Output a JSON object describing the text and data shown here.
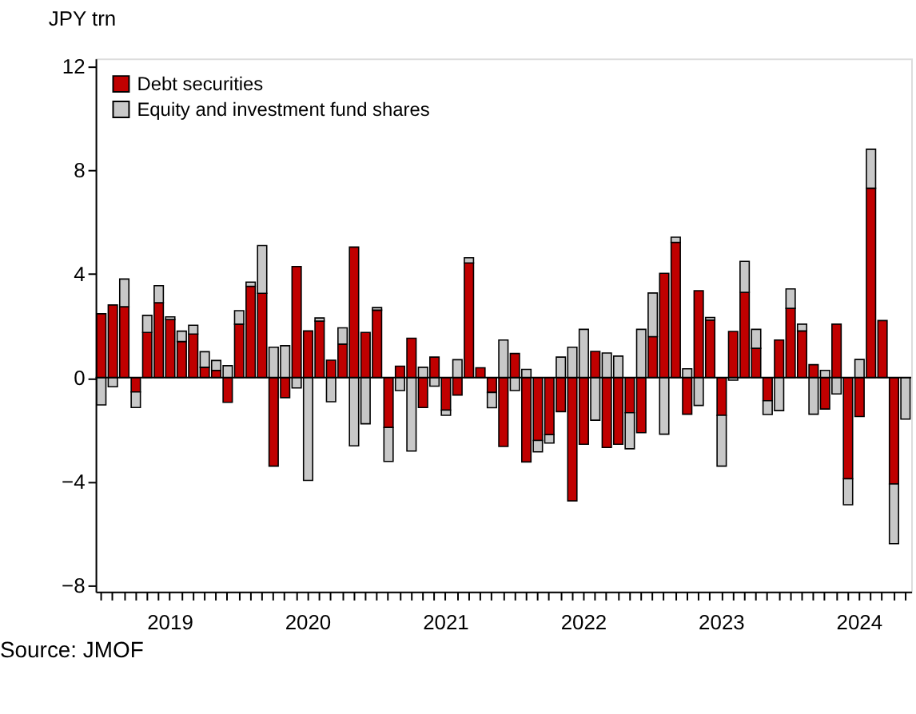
{
  "chart_data": {
    "type": "bar",
    "stacked": true,
    "ylabel": "JPY trn",
    "categories": [
      null,
      null,
      null,
      null,
      null,
      null,
      "2019",
      null,
      null,
      null,
      null,
      null,
      null,
      null,
      null,
      null,
      null,
      null,
      "2020",
      null,
      null,
      null,
      null,
      null,
      null,
      null,
      null,
      null,
      null,
      null,
      "2021",
      null,
      null,
      null,
      null,
      null,
      null,
      null,
      null,
      null,
      null,
      null,
      "2022",
      null,
      null,
      null,
      null,
      null,
      null,
      null,
      null,
      null,
      null,
      null,
      "2023",
      null,
      null,
      null,
      null,
      null,
      null,
      null,
      null,
      null,
      null,
      null,
      "2024",
      null,
      null,
      null,
      null
    ],
    "series": [
      {
        "name": "Debt securities",
        "color": "#c00000",
        "values": [
          2.46,
          2.8,
          2.73,
          -0.55,
          1.74,
          2.89,
          2.24,
          1.39,
          1.68,
          0.4,
          0.28,
          -0.95,
          2.06,
          3.52,
          3.25,
          -3.41,
          -0.77,
          4.28,
          1.8,
          2.18,
          0.67,
          1.29,
          5.03,
          1.74,
          2.6,
          -1.92,
          0.44,
          1.52,
          -1.15,
          0.79,
          -1.25,
          -0.67,
          4.42,
          0.38,
          -0.57,
          -2.65,
          0.93,
          -3.25,
          -2.42,
          -2.2,
          -1.31,
          -4.75,
          -2.57,
          1.01,
          -2.69,
          -2.57,
          -1.35,
          -2.12,
          1.58,
          4.02,
          5.21,
          -1.41,
          3.35,
          2.22,
          -1.45,
          1.78,
          3.29,
          1.13,
          -0.89,
          1.45,
          2.67,
          1.8,
          0.5,
          -1.21,
          2.06,
          -3.9,
          -1.5,
          7.3,
          2.2,
          -4.1,
          null
        ]
      },
      {
        "name": "Equity and investment fund shares",
        "color": "#c8c8c8",
        "values": [
          -1.05,
          -0.35,
          1.07,
          -0.6,
          0.66,
          0.65,
          0.1,
          0.4,
          0.34,
          0.6,
          0.38,
          0.46,
          0.52,
          0.16,
          1.84,
          1.17,
          1.23,
          -0.4,
          -3.96,
          0.12,
          -0.93,
          0.63,
          -2.63,
          -1.78,
          0.1,
          -1.31,
          -0.5,
          -2.83,
          0.4,
          -0.33,
          -0.2,
          0.69,
          0.2,
          null,
          -0.59,
          1.45,
          -0.5,
          0.32,
          -0.44,
          -0.32,
          0.79,
          1.17,
          1.86,
          -1.64,
          0.95,
          0.83,
          -1.39,
          1.86,
          1.68,
          -2.18,
          0.2,
          0.34,
          -1.07,
          0.1,
          -1.96,
          -0.1,
          1.19,
          0.73,
          -0.53,
          -1.27,
          0.75,
          0.26,
          -1.41,
          0.28,
          -0.63,
          -1.0,
          0.7,
          1.5,
          null,
          -2.3,
          -1.6
        ]
      }
    ],
    "ylim": [
      -8.25,
      12.3
    ],
    "yticks": [
      -8,
      -4,
      0,
      4,
      8,
      12
    ],
    "ref_lines": [
      {
        "axis": "y",
        "value": 0,
        "color": "#000000"
      }
    ],
    "legend": "top left",
    "grid": false,
    "annotations": [
      "Source: JMOF"
    ]
  }
}
